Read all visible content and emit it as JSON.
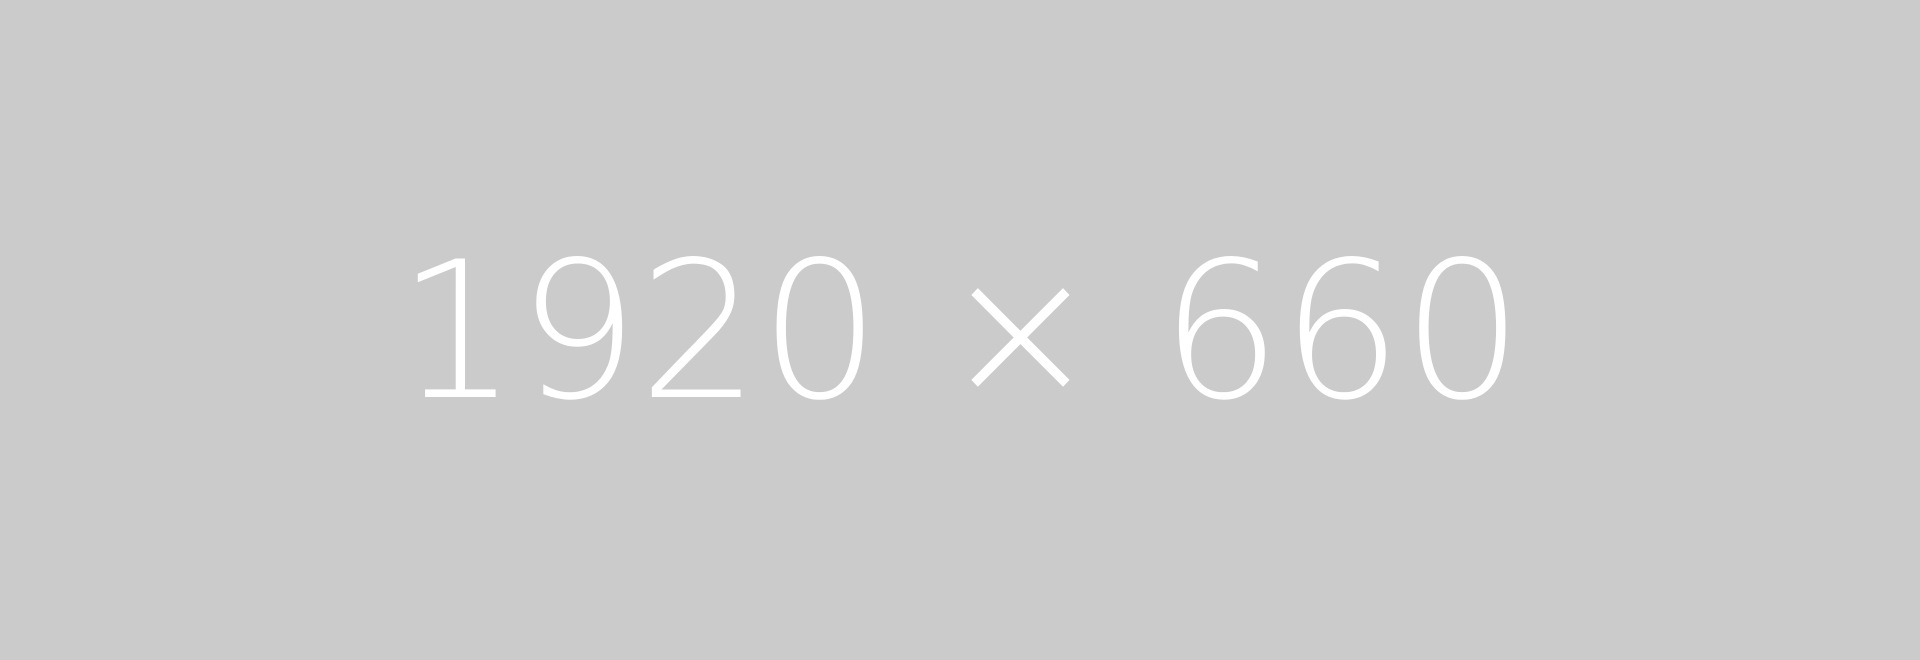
{
  "placeholder": {
    "label": "1920 × 660",
    "background_color": "#cbcbcb",
    "text_color": "#ffffff"
  }
}
